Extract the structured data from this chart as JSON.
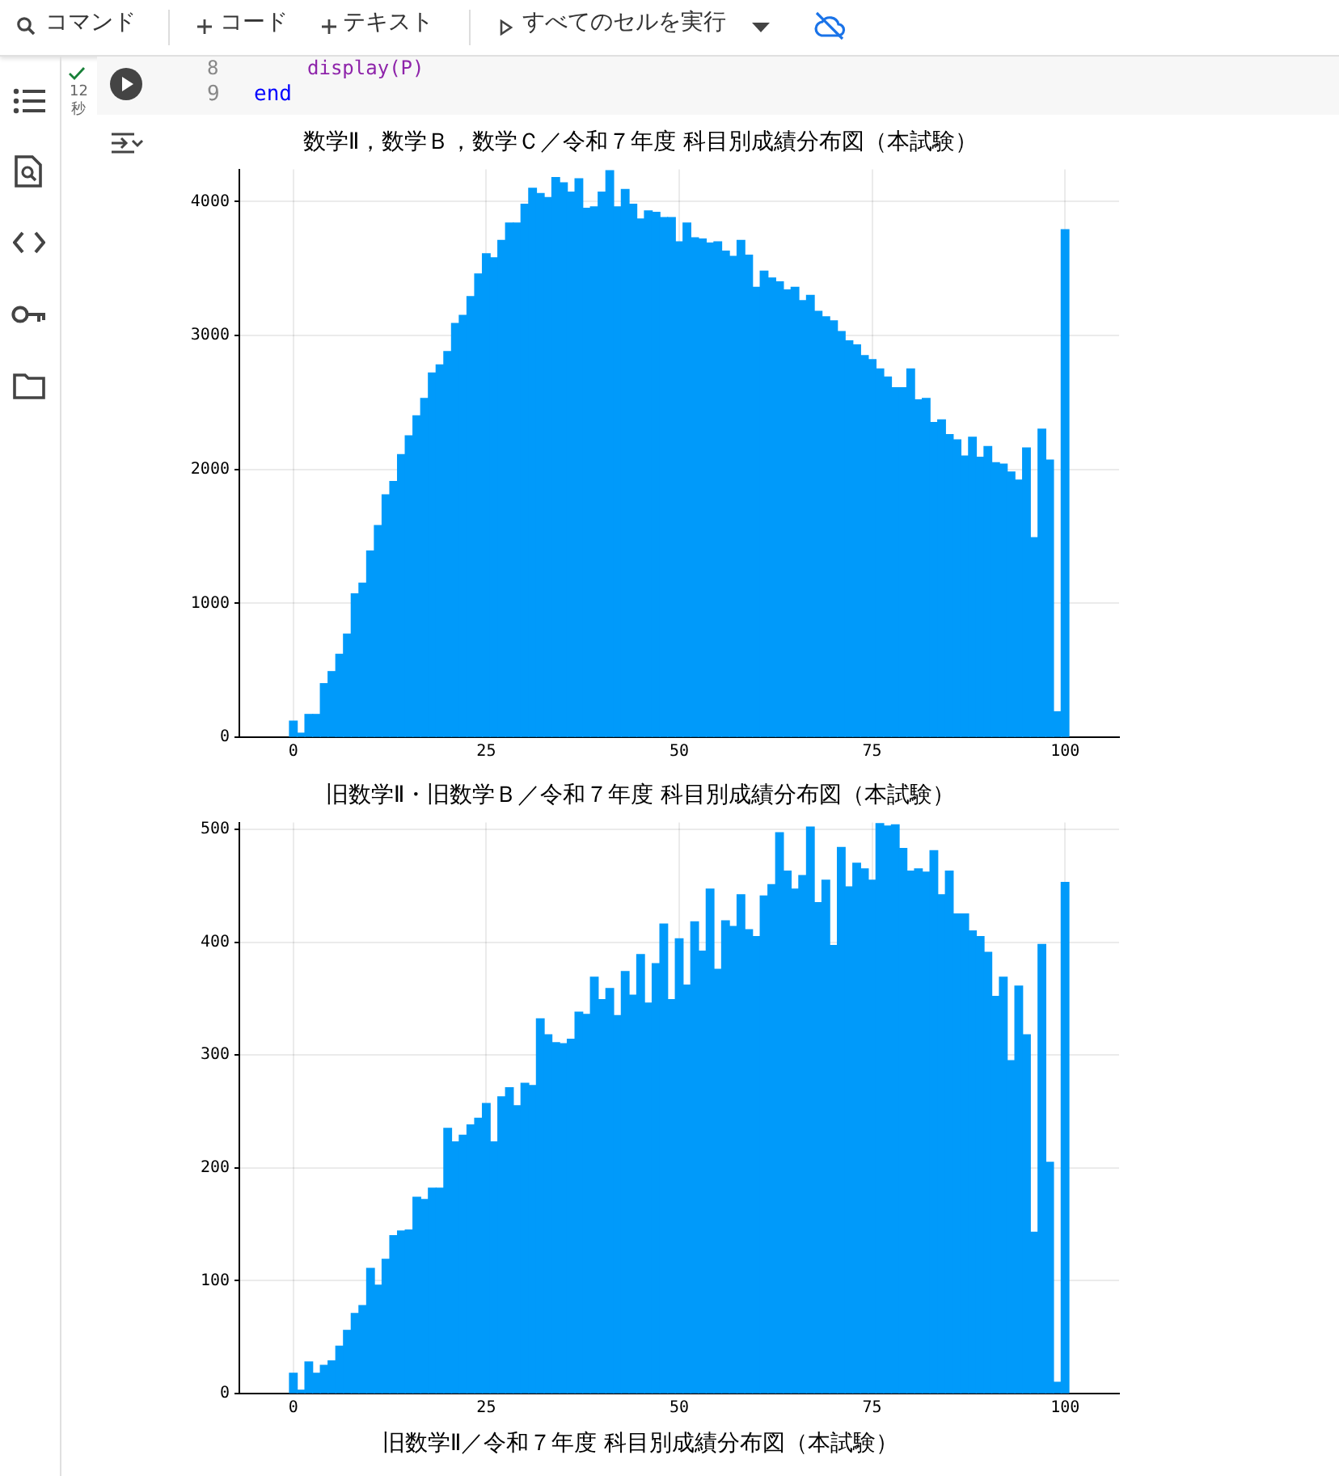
{
  "chart_data": [
    {
      "type": "histogram",
      "title": "数学Ⅱ，数学Ｂ，数学Ｃ／令和７年度 科目別成績分布図（本試験）",
      "color": "#009afa",
      "bins": [
        -0.5,
        0.5,
        1.5,
        2.5,
        3.5,
        4.5,
        5.5,
        6.5,
        7.5,
        8.5,
        9.5,
        10.5,
        11.5,
        12.5,
        13.5,
        14.5,
        15.5,
        16.5,
        17.5,
        18.5,
        19.5,
        20.5,
        21.5,
        22.5,
        23.5,
        24.5,
        25.5,
        26.5,
        27.5,
        28.5,
        29.5,
        30.5,
        31.5,
        32.5,
        33.5,
        34.5,
        35.5,
        36.5,
        37.5,
        38.5,
        39.5,
        40.5,
        41.5,
        42.5,
        43.5,
        44.5,
        45.5,
        46.5,
        47.5,
        48.5,
        49.5,
        50.5,
        51.5,
        52.5,
        53.5,
        54.5,
        55.5,
        56.5,
        57.5,
        58.5,
        59.5,
        60.5,
        61.5,
        62.5,
        63.5,
        64.5,
        65.5,
        66.5,
        67.5,
        68.5,
        69.5,
        70.5,
        71.5,
        72.5,
        73.5,
        74.5,
        75.5,
        76.5,
        77.5,
        78.5,
        79.5,
        80.5,
        81.5,
        82.5,
        83.5,
        84.5,
        85.5,
        86.5,
        87.5,
        88.5,
        89.5,
        90.5,
        91.5,
        92.5,
        93.5,
        94.5,
        95.5,
        96.5,
        97.5,
        98.5,
        99.5,
        100.5
      ],
      "values": [
        120,
        30,
        170,
        170,
        400,
        490,
        620,
        770,
        1070,
        1150,
        1390,
        1580,
        1810,
        1910,
        2110,
        2250,
        2400,
        2530,
        2720,
        2780,
        2880,
        3090,
        3150,
        3290,
        3460,
        3610,
        3580,
        3710,
        3840,
        3840,
        3980,
        4100,
        4060,
        4030,
        4180,
        4140,
        4070,
        4170,
        3950,
        3960,
        4070,
        4230,
        3960,
        4090,
        3980,
        3870,
        3930,
        3920,
        3880,
        3880,
        3700,
        3840,
        3730,
        3720,
        3690,
        3700,
        3630,
        3590,
        3710,
        3600,
        3360,
        3480,
        3430,
        3400,
        3340,
        3360,
        3260,
        3300,
        3180,
        3140,
        3110,
        3030,
        2960,
        2930,
        2850,
        2820,
        2750,
        2690,
        2610,
        2610,
        2750,
        2520,
        2530,
        2350,
        2370,
        2260,
        2220,
        2100,
        2240,
        2090,
        2170,
        2050,
        2040,
        1980,
        1920,
        2160,
        1490,
        2300,
        2070,
        190,
        3790
      ],
      "xlim": [
        -7,
        107
      ],
      "xticks": [
        0,
        25,
        50,
        75,
        100
      ],
      "ylim": [
        0,
        4240
      ],
      "yticks": [
        0,
        1000,
        2000,
        3000,
        4000
      ],
      "grid": true,
      "annotations": [
        "コマンド",
        "コード",
        "テキスト",
        "すべてのセルを実行",
        "8",
        "display(P)",
        "9",
        "end",
        "12",
        "秒"
      ]
    },
    {
      "type": "histogram",
      "title": "旧数学Ⅱ・旧数学Ｂ／令和７年度 科目別成績分布図（本試験）",
      "color": "#009afa",
      "bins": [
        -0.5,
        0.5,
        1.5,
        2.5,
        3.5,
        4.5,
        5.5,
        6.5,
        7.5,
        8.5,
        9.5,
        10.5,
        11.5,
        12.5,
        13.5,
        14.5,
        15.5,
        16.5,
        17.5,
        18.5,
        19.5,
        20.5,
        21.5,
        22.5,
        23.5,
        24.5,
        25.5,
        26.5,
        27.5,
        28.5,
        29.5,
        30.5,
        31.5,
        32.5,
        33.5,
        34.5,
        35.5,
        36.5,
        37.5,
        38.5,
        39.5,
        40.5,
        41.5,
        42.5,
        43.5,
        44.5,
        45.5,
        46.5,
        47.5,
        48.5,
        49.5,
        50.5,
        51.5,
        52.5,
        53.5,
        54.5,
        55.5,
        56.5,
        57.5,
        58.5,
        59.5,
        60.5,
        61.5,
        62.5,
        63.5,
        64.5,
        65.5,
        66.5,
        67.5,
        68.5,
        69.5,
        70.5,
        71.5,
        72.5,
        73.5,
        74.5,
        75.5,
        76.5,
        77.5,
        78.5,
        79.5,
        80.5,
        81.5,
        82.5,
        83.5,
        84.5,
        85.5,
        86.5,
        87.5,
        88.5,
        89.5,
        90.5,
        91.5,
        92.5,
        93.5,
        94.5,
        95.5,
        96.5,
        97.5,
        98.5,
        99.5,
        100.5
      ],
      "values": [
        18,
        3,
        28,
        18,
        25,
        29,
        42,
        56,
        71,
        78,
        111,
        96,
        119,
        140,
        144,
        145,
        174,
        172,
        182,
        182,
        235,
        223,
        229,
        238,
        244,
        257,
        223,
        263,
        271,
        255,
        275,
        273,
        332,
        318,
        311,
        310,
        314,
        338,
        336,
        369,
        349,
        359,
        335,
        374,
        353,
        389,
        346,
        381,
        416,
        349,
        403,
        362,
        418,
        392,
        447,
        376,
        419,
        414,
        442,
        411,
        405,
        441,
        451,
        497,
        463,
        447,
        459,
        502,
        435,
        455,
        397,
        484,
        449,
        470,
        465,
        455,
        505,
        503,
        504,
        483,
        463,
        465,
        462,
        481,
        442,
        463,
        425,
        425,
        410,
        405,
        391,
        352,
        369,
        295,
        361,
        318,
        143,
        398,
        205,
        10,
        453
      ],
      "xlim": [
        -7,
        107
      ],
      "xticks": [
        0,
        25,
        50,
        75,
        100
      ],
      "ylim": [
        0,
        506
      ],
      "yticks": [
        0,
        100,
        200,
        300,
        400,
        500
      ],
      "grid": true
    },
    {
      "type": "other",
      "title": "旧数学Ⅱ／令和７年度 科目別成績分布図（本試験）"
    }
  ]
}
